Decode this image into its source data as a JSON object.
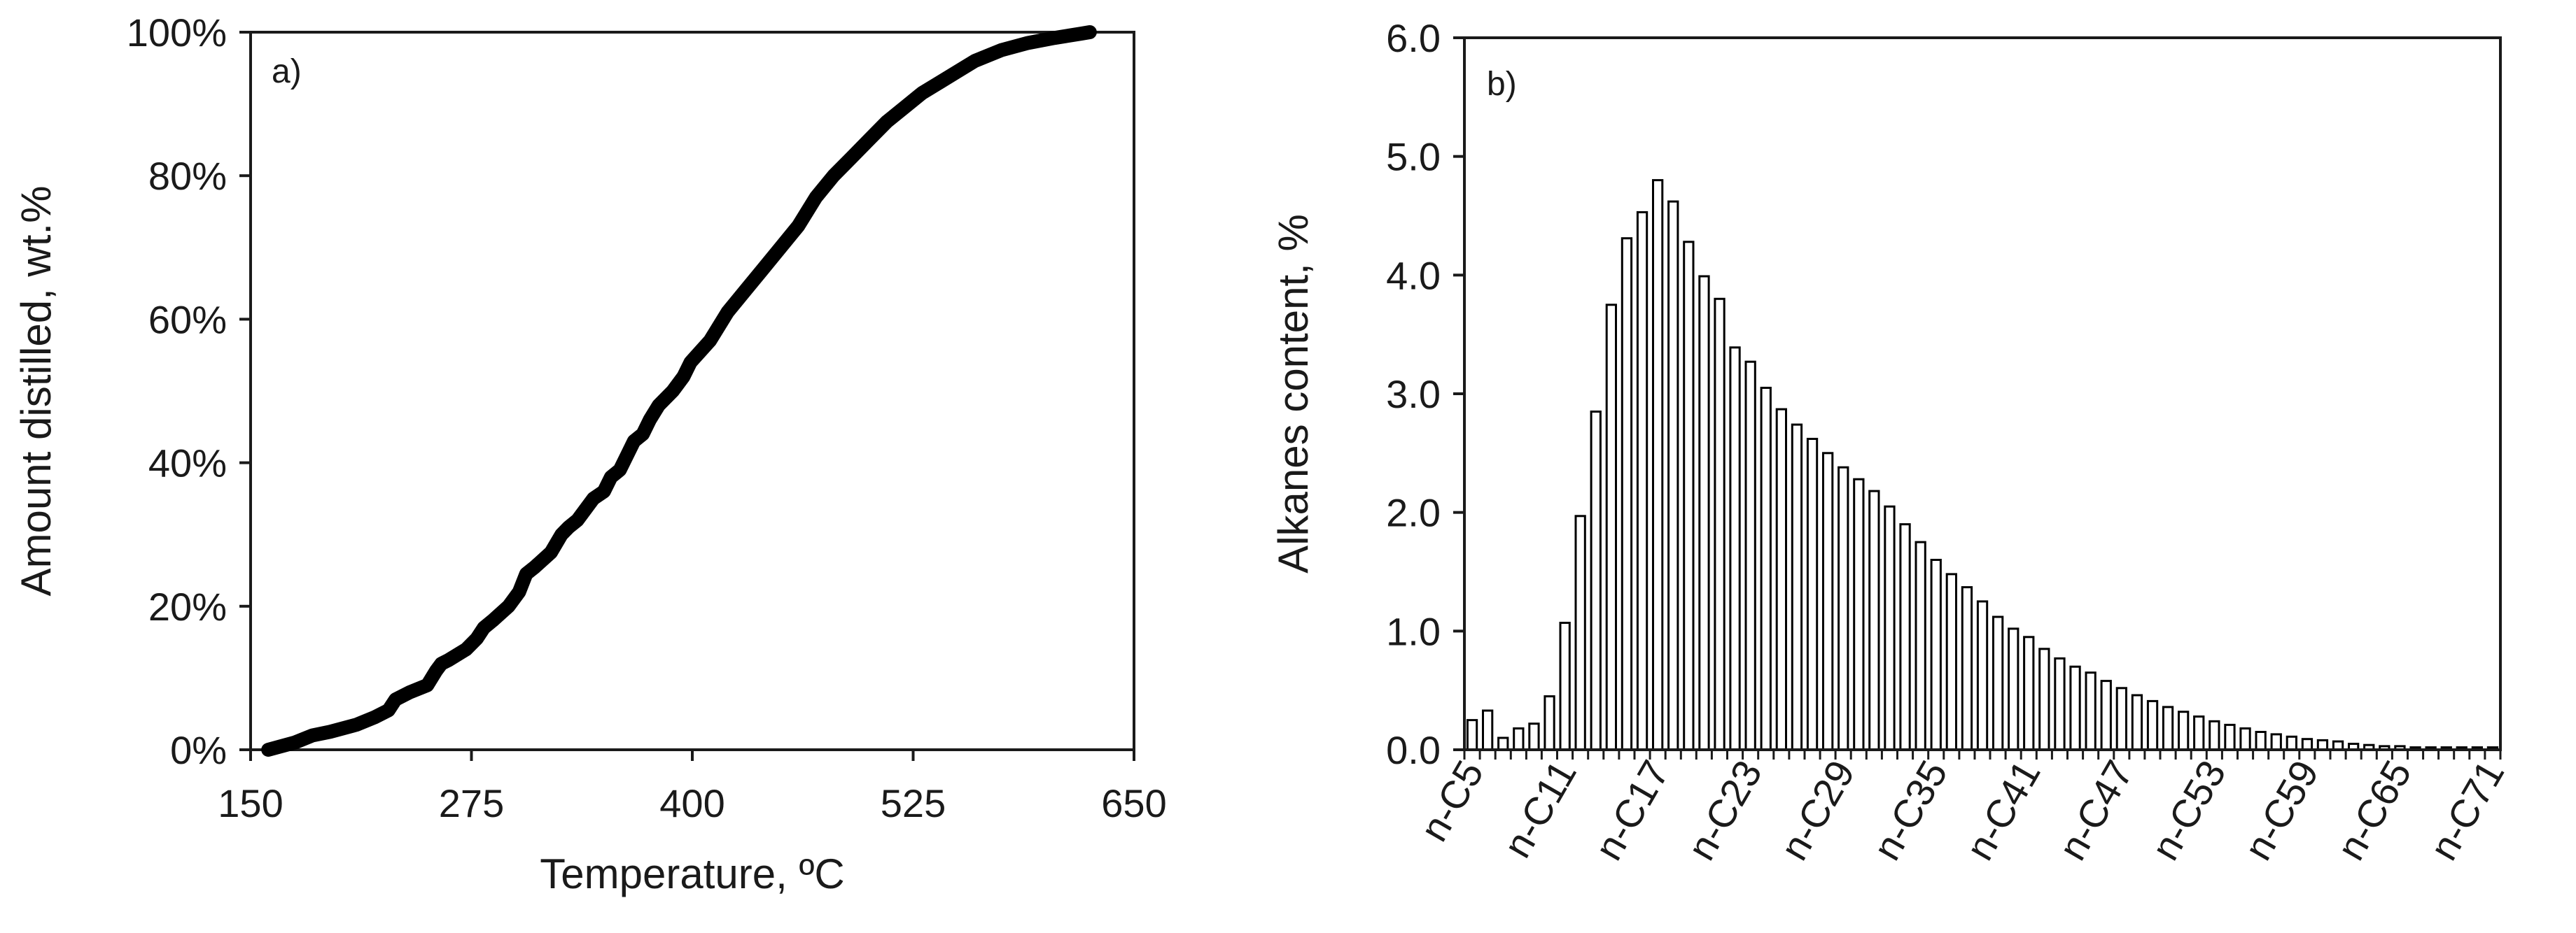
{
  "chart_data": [
    {
      "panel": "a)",
      "type": "line",
      "title": "",
      "xlabel": "Temperature, ºC",
      "ylabel": "Amount distilled, wt.%",
      "xlim": [
        150,
        650
      ],
      "ylim": [
        0,
        100
      ],
      "xticks": [
        150,
        275,
        400,
        525,
        650
      ],
      "yticks": [
        0,
        20,
        40,
        60,
        80,
        100
      ],
      "xtick_labels": [
        "150",
        "275",
        "400",
        "525",
        "650"
      ],
      "ytick_labels": [
        "0%",
        "20%",
        "40%",
        "60%",
        "80%",
        "100%"
      ],
      "grid": false,
      "legend": "none",
      "series": [
        {
          "x": [
            160,
            175,
            185,
            195,
            210,
            220,
            228,
            232,
            240,
            250,
            255,
            258,
            262,
            272,
            278,
            282,
            287,
            296,
            302,
            306,
            311,
            320,
            326,
            330,
            335,
            344,
            350,
            354,
            359,
            367,
            372,
            376,
            381,
            389,
            395,
            399,
            410,
            420,
            430,
            440,
            450,
            460,
            470,
            480,
            490,
            500,
            510,
            520,
            530,
            540,
            550,
            560,
            575,
            590,
            605,
            620,
            625
          ],
          "y": [
            0,
            1,
            2,
            2.5,
            3.5,
            4.5,
            5.5,
            7,
            8,
            9,
            11,
            12,
            12.5,
            14,
            15.5,
            17,
            18,
            20,
            22,
            24.5,
            25.5,
            27.5,
            30,
            31,
            32,
            35,
            36,
            38,
            39,
            43,
            44,
            46,
            48,
            50,
            52,
            54,
            57,
            61,
            64,
            67,
            70,
            73,
            77,
            80,
            82.5,
            85,
            87.5,
            89.5,
            91.5,
            93,
            94.5,
            96,
            97.5,
            98.5,
            99.2,
            99.8,
            100
          ],
          "color": "#000000"
        }
      ]
    },
    {
      "panel": "b)",
      "type": "bar",
      "title": "",
      "xlabel": "",
      "ylabel": "Alkanes content, %",
      "ylim": [
        0,
        6.0
      ],
      "yticks": [
        0.0,
        1.0,
        2.0,
        3.0,
        4.0,
        5.0,
        6.0
      ],
      "ytick_labels": [
        "0.0",
        "1.0",
        "2.0",
        "3.0",
        "4.0",
        "5.0",
        "6.0"
      ],
      "grid": false,
      "legend": "none",
      "categories": [
        "n-C5",
        "n-C6",
        "n-C7",
        "n-C8",
        "n-C9",
        "n-C10",
        "n-C11",
        "n-C12",
        "n-C13",
        "n-C14",
        "n-C15",
        "n-C16",
        "n-C17",
        "n-C18",
        "n-C19",
        "n-C20",
        "n-C21",
        "n-C22",
        "n-C23",
        "n-C24",
        "n-C25",
        "n-C26",
        "n-C27",
        "n-C28",
        "n-C29",
        "n-C30",
        "n-C31",
        "n-C32",
        "n-C33",
        "n-C34",
        "n-C35",
        "n-C36",
        "n-C37",
        "n-C38",
        "n-C39",
        "n-C40",
        "n-C41",
        "n-C42",
        "n-C43",
        "n-C44",
        "n-C45",
        "n-C46",
        "n-C47",
        "n-C48",
        "n-C49",
        "n-C50",
        "n-C51",
        "n-C52",
        "n-C53",
        "n-C54",
        "n-C55",
        "n-C56",
        "n-C57",
        "n-C58",
        "n-C59",
        "n-C60",
        "n-C61",
        "n-C62",
        "n-C63",
        "n-C64",
        "n-C65",
        "n-C66",
        "n-C67",
        "n-C68",
        "n-C69",
        "n-C70",
        "n-C71"
      ],
      "visible_tick_labels": [
        "n-C5",
        "n-C11",
        "n-C17",
        "n-C23",
        "n-C29",
        "n-C35",
        "n-C41",
        "n-C47",
        "n-C53",
        "n-C59",
        "n-C65",
        "n-C71"
      ],
      "values": [
        0.25,
        0.33,
        0.1,
        0.18,
        0.22,
        0.45,
        1.07,
        1.97,
        2.85,
        3.75,
        4.31,
        4.53,
        4.8,
        4.62,
        4.28,
        3.99,
        3.8,
        3.39,
        3.27,
        3.05,
        2.87,
        2.74,
        2.62,
        2.5,
        2.38,
        2.28,
        2.18,
        2.05,
        1.9,
        1.75,
        1.6,
        1.48,
        1.37,
        1.25,
        1.12,
        1.02,
        0.95,
        0.85,
        0.77,
        0.7,
        0.65,
        0.58,
        0.52,
        0.46,
        0.41,
        0.36,
        0.32,
        0.28,
        0.24,
        0.21,
        0.18,
        0.15,
        0.13,
        0.11,
        0.09,
        0.08,
        0.07,
        0.05,
        0.04,
        0.03,
        0.03,
        0.02,
        0.02,
        0.02,
        0.02,
        0.02,
        0.02
      ],
      "bar_fill": "#ffffff",
      "bar_stroke": "#000000"
    }
  ]
}
